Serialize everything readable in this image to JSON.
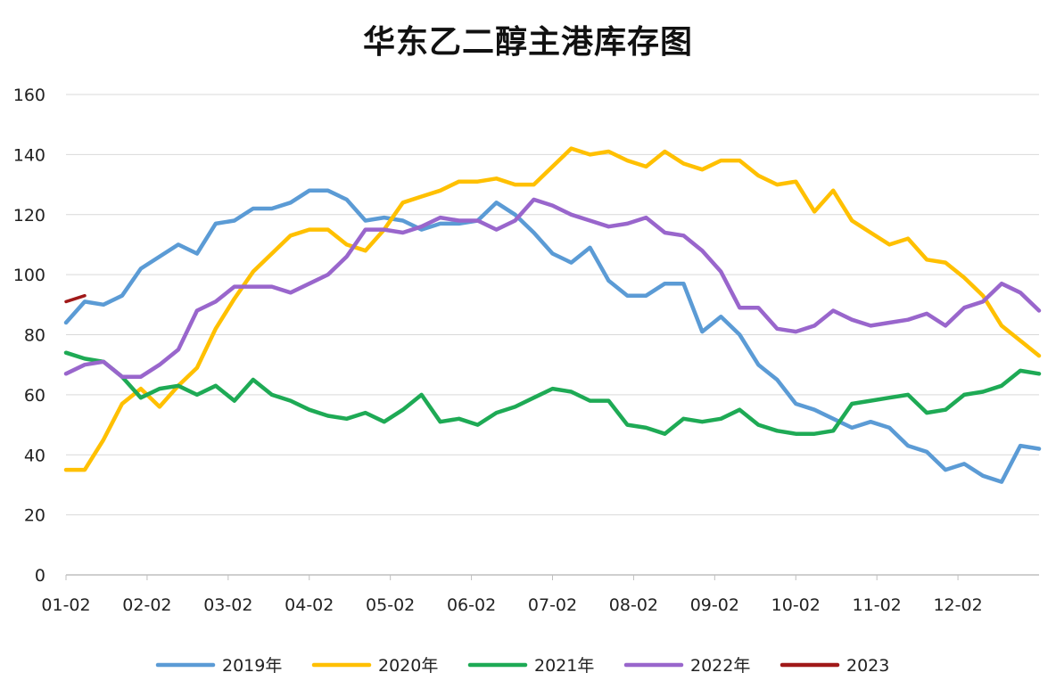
{
  "chart_data": {
    "type": "line",
    "title": "华东乙二醇主港库存图",
    "xlabel": "",
    "ylabel": "",
    "ylim": [
      0,
      160
    ],
    "yticks": [
      0,
      20,
      40,
      60,
      80,
      100,
      120,
      140,
      160
    ],
    "x_tick_labels": [
      "01-02",
      "02-02",
      "03-02",
      "04-02",
      "05-02",
      "06-02",
      "07-02",
      "08-02",
      "09-02",
      "10-02",
      "11-02",
      "12-02"
    ],
    "grid": "horizontal",
    "legend_position": "bottom",
    "weeks_per_year": 52,
    "series": [
      {
        "name": "2019年",
        "color": "#5B9BD5",
        "values": [
          84,
          91,
          90,
          93,
          102,
          106,
          110,
          107,
          117,
          118,
          122,
          122,
          124,
          128,
          128,
          125,
          118,
          119,
          118,
          115,
          117,
          117,
          118,
          124,
          120,
          114,
          107,
          104,
          109,
          98,
          93,
          93,
          97,
          97,
          81,
          86,
          80,
          70,
          65,
          57,
          55,
          52,
          49,
          51,
          49,
          43,
          41,
          35,
          37,
          33,
          31,
          43,
          42
        ]
      },
      {
        "name": "2020年",
        "color": "#FFC000",
        "values": [
          35,
          35,
          45,
          57,
          62,
          56,
          63,
          69,
          82,
          92,
          101,
          107,
          113,
          115,
          115,
          110,
          108,
          115,
          124,
          126,
          128,
          131,
          131,
          132,
          130,
          130,
          136,
          142,
          140,
          141,
          138,
          136,
          141,
          137,
          135,
          138,
          138,
          133,
          130,
          131,
          121,
          128,
          118,
          114,
          110,
          112,
          105,
          104,
          99,
          93,
          83,
          78,
          73
        ]
      },
      {
        "name": "2021年",
        "color": "#1EAA55",
        "values": [
          74,
          72,
          71,
          66,
          59,
          62,
          63,
          60,
          63,
          58,
          65,
          60,
          58,
          55,
          53,
          52,
          54,
          51,
          55,
          60,
          51,
          52,
          50,
          54,
          56,
          59,
          62,
          61,
          58,
          58,
          50,
          49,
          47,
          52,
          51,
          52,
          55,
          50,
          48,
          47,
          47,
          48,
          57,
          58,
          59,
          60,
          54,
          55,
          60,
          61,
          63,
          68,
          67
        ]
      },
      {
        "name": "2022年",
        "color": "#9966CC",
        "values": [
          67,
          70,
          71,
          66,
          66,
          70,
          75,
          88,
          91,
          96,
          96,
          96,
          94,
          97,
          100,
          106,
          115,
          115,
          114,
          116,
          119,
          118,
          118,
          115,
          118,
          125,
          123,
          120,
          118,
          116,
          117,
          119,
          114,
          113,
          108,
          101,
          89,
          89,
          82,
          81,
          83,
          88,
          85,
          83,
          84,
          85,
          87,
          83,
          89,
          91,
          97,
          94,
          88
        ]
      },
      {
        "name": "2023",
        "color": "#A01919",
        "values": [
          91,
          93
        ]
      }
    ]
  }
}
